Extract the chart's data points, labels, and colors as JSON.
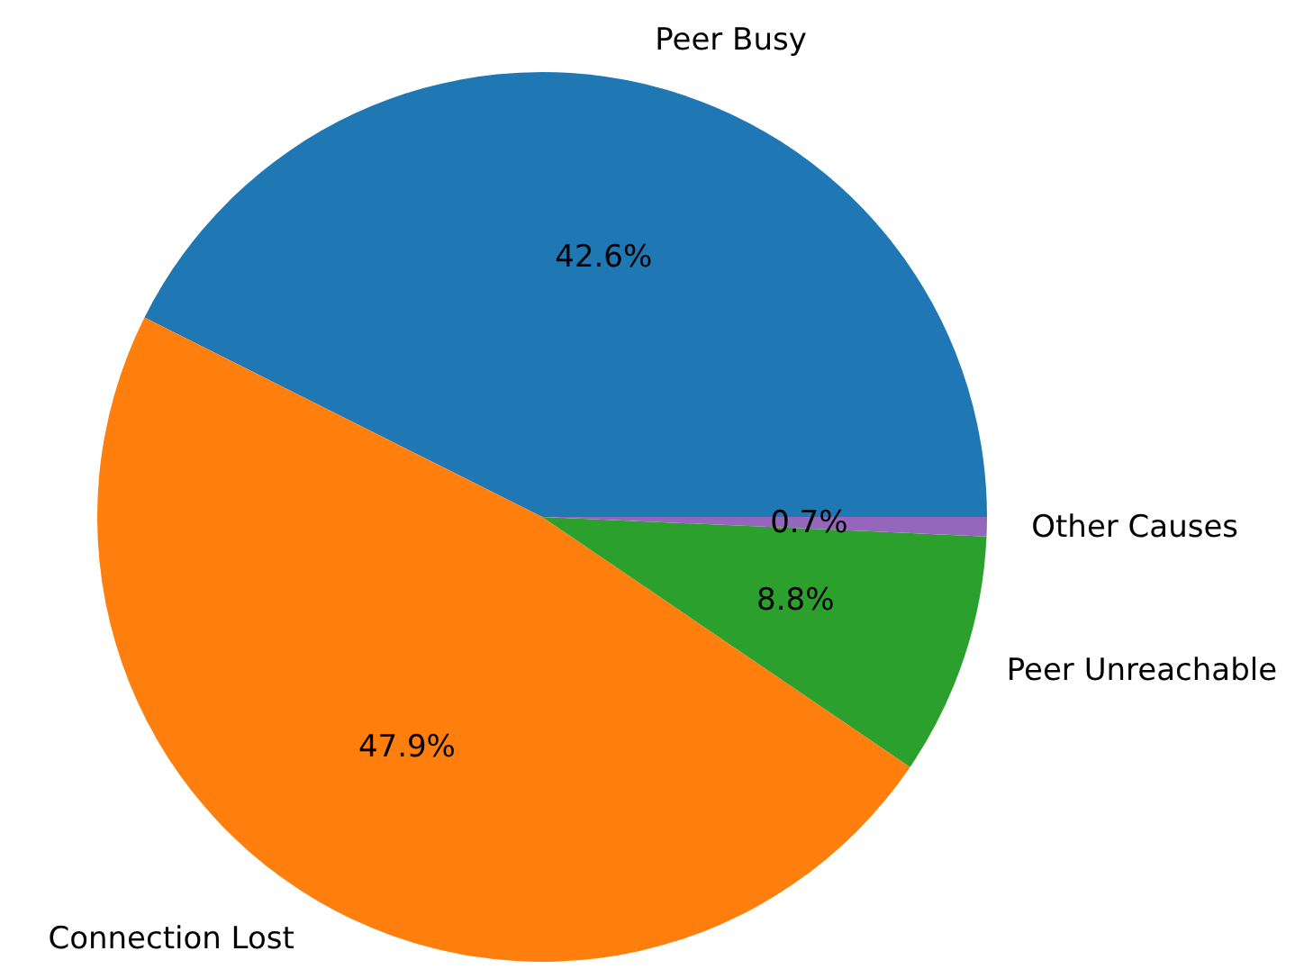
{
  "chart_data": {
    "type": "pie",
    "categories": [
      "Peer Busy",
      "Connection Lost",
      "Peer Unreachable",
      "Other Causes"
    ],
    "values": [
      42.6,
      47.9,
      8.8,
      0.7
    ],
    "colors": [
      "#1f77b4",
      "#ff7f0e",
      "#2ca02c",
      "#9467bd"
    ],
    "value_labels": [
      "42.6%",
      "47.9%",
      "8.8%",
      "0.7%"
    ],
    "legend": false
  }
}
